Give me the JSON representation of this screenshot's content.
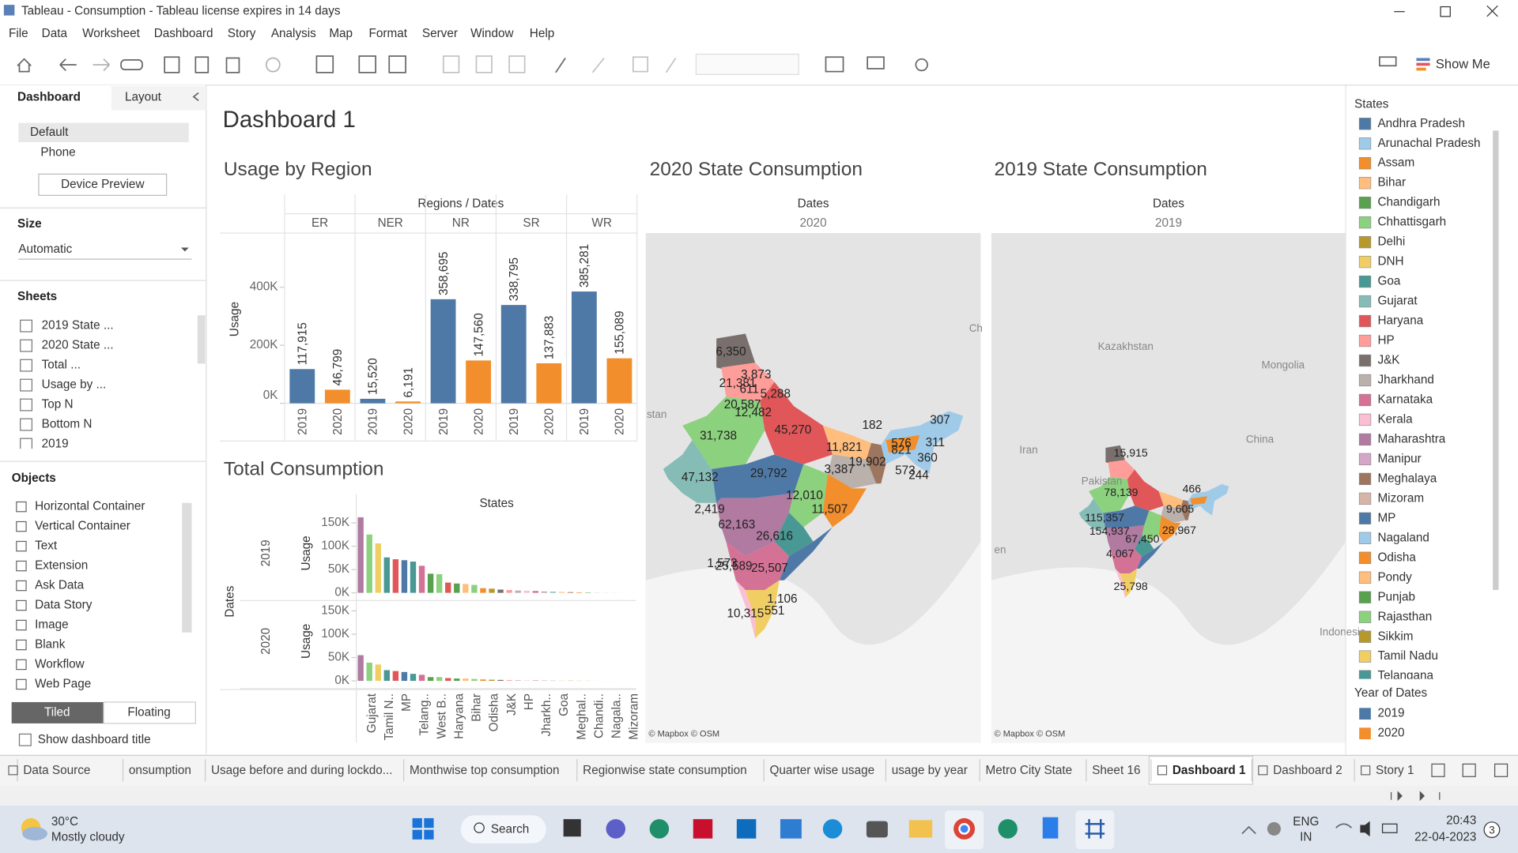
{
  "window": {
    "title": "Tableau - Consumption - Tableau license expires in 14 days"
  },
  "menu": [
    "File",
    "Data",
    "Worksheet",
    "Dashboard",
    "Story",
    "Analysis",
    "Map",
    "Format",
    "Server",
    "Window",
    "Help"
  ],
  "toolbar": {
    "show_me": "Show Me"
  },
  "left_panel": {
    "tabs": [
      "Dashboard",
      "Layout"
    ],
    "devices": [
      "Default",
      "Phone"
    ],
    "device_preview": "Device Preview",
    "size_heading": "Size",
    "size_value": "Automatic",
    "sheets_heading": "Sheets",
    "sheets": [
      "2019 State ...",
      "2020 State ...",
      "Total ...",
      "Usage by ...",
      "Top N",
      "Bottom N",
      "2019"
    ],
    "objects_heading": "Objects",
    "objects": [
      "Horizontal Container",
      "Vertical Container",
      "Text",
      "Extension",
      "Ask Data",
      "Data Story",
      "Image",
      "Blank",
      "Workflow",
      "Web Page"
    ],
    "layout_modes": [
      "Tiled",
      "Floating"
    ],
    "show_title": "Show dashboard title"
  },
  "dashboard": {
    "title": "Dashboard 1"
  },
  "chart_data": [
    {
      "type": "bar",
      "title": "Usage by Region",
      "header": "Regions / Dates",
      "y_label": "Usage",
      "categories": [
        "ER",
        "NER",
        "NR",
        "SR",
        "WR"
      ],
      "series": [
        {
          "name": "2019",
          "color": "#4e79a7",
          "values": [
            117915,
            15520,
            358695,
            338795,
            385281
          ],
          "value_labels": [
            "117,915",
            "15,520",
            "358,695",
            "338,795",
            "385,281"
          ]
        },
        {
          "name": "2020",
          "color": "#f28e2b",
          "values": [
            46799,
            6191,
            147560,
            137883,
            155089
          ],
          "value_labels": [
            "46,799",
            "6,191",
            "147,560",
            "137,883",
            "155,089"
          ]
        }
      ],
      "ylim": [
        0,
        580000
      ],
      "yticks": [
        {
          "value": 0,
          "label": "0K"
        },
        {
          "value": 200000,
          "label": "200K"
        },
        {
          "value": 400000,
          "label": "400K"
        }
      ]
    },
    {
      "type": "bar",
      "title": "Total Consumption",
      "header": "States",
      "row_label": "Dates",
      "y_label": "Usage",
      "categories": [
        null,
        "Gujarat",
        null,
        "Tamil N..",
        null,
        "MP",
        null,
        "Telang..",
        null,
        "West B..",
        null,
        "Haryana",
        null,
        "Bihar",
        null,
        "Odisha",
        null,
        "J&K",
        null,
        "HP",
        null,
        "Jharkh..",
        null,
        "Goa",
        null,
        "Meghal..",
        null,
        "Chandi..",
        null,
        "Nagala..",
        null,
        "Mizoram"
      ],
      "colors": [
        "#b07aa1",
        "#8cd17d",
        "#f1ce63",
        "#499894",
        "#e15759",
        "#4e79a7",
        "#499894",
        "#d37295",
        "#59a14f",
        "#8cd17d",
        "#e15759",
        "#59a14f",
        "#ffbe7d",
        "#8cd17d",
        "#f28e2b",
        "#b6992d",
        "#79706e",
        "#ff9d9a",
        "#bab0ac",
        "#fabfd2",
        "#d37295",
        "#bab0ac",
        "#86bcb6",
        "#ffbe7d",
        "#9d7660",
        "#f28e2b",
        "#59a14f",
        "#a0cbe8",
        "#d7b5a6",
        "#d4a6c8",
        "#a0cbe8",
        "#d7b5a6"
      ],
      "series": [
        {
          "name": "2019",
          "values": [
            162000,
            125000,
            106000,
            76000,
            72000,
            70000,
            67000,
            58000,
            41000,
            40000,
            22000,
            20000,
            19000,
            17000,
            10000,
            9000,
            7000,
            6000,
            5000,
            4500,
            4000,
            3000,
            2500,
            2000,
            1500,
            1200,
            800,
            500,
            300,
            200,
            100,
            50
          ]
        },
        {
          "name": "2020",
          "values": [
            55000,
            39000,
            35000,
            23000,
            21000,
            19000,
            15000,
            13000,
            8000,
            8000,
            6000,
            5000,
            5000,
            4000,
            3000,
            2500,
            2000,
            1500,
            1200,
            1000,
            900,
            800,
            600,
            500,
            400,
            300,
            200,
            150,
            100,
            60,
            40,
            20
          ]
        }
      ],
      "ylim": [
        0,
        170000
      ],
      "yticks": [
        {
          "value": 0,
          "label": "0K"
        },
        {
          "value": 50000,
          "label": "50K"
        },
        {
          "value": 100000,
          "label": "100K"
        },
        {
          "value": 150000,
          "label": "150K"
        }
      ]
    }
  ],
  "maps": [
    {
      "title": "2020 State Consumption",
      "header": "Dates",
      "year": "2020",
      "labels": [
        "6,350",
        "3,873",
        "21,381",
        "611",
        "5,288",
        "20,587",
        "12,482",
        "45,270",
        "182",
        "307",
        "11,821",
        "576",
        "821",
        "311",
        "19,902",
        "360",
        "3,387",
        "573",
        "244",
        "31,738",
        "29,792",
        "47,132",
        "12,010",
        "11,507",
        "2,419",
        "62,163",
        "26,616",
        "1,573",
        "25,589",
        "25,507",
        "1,106",
        "10,315",
        "551"
      ],
      "places": [
        "stan",
        "Ch"
      ],
      "credit": "© Mapbox © OSM"
    },
    {
      "title": "2019 State Consumption",
      "header": "Dates",
      "year": "2019",
      "labels": [
        "15,915",
        "78,139",
        "115,357",
        "154,937",
        "4,067",
        "67,450",
        "25,798",
        "28,967",
        "9,605",
        "466"
      ],
      "places": [
        "Kazakhstan",
        "Mongolia",
        "China",
        "Iran",
        "Pakistan",
        "Indonesia",
        "en"
      ],
      "credit": "© Mapbox © OSM"
    }
  ],
  "legend": {
    "states_title": "States",
    "year_title": "Year of Dates",
    "states": [
      {
        "name": "Andhra Pradesh",
        "color": "#4e79a7"
      },
      {
        "name": "Arunachal Pradesh",
        "color": "#a0cbe8"
      },
      {
        "name": "Assam",
        "color": "#f28e2b"
      },
      {
        "name": "Bihar",
        "color": "#ffbe7d"
      },
      {
        "name": "Chandigarh",
        "color": "#59a14f"
      },
      {
        "name": "Chhattisgarh",
        "color": "#8cd17d"
      },
      {
        "name": "Delhi",
        "color": "#b6992d"
      },
      {
        "name": "DNH",
        "color": "#f1ce63"
      },
      {
        "name": "Goa",
        "color": "#499894"
      },
      {
        "name": "Gujarat",
        "color": "#86bcb6"
      },
      {
        "name": "Haryana",
        "color": "#e15759"
      },
      {
        "name": "HP",
        "color": "#ff9d9a"
      },
      {
        "name": "J&K",
        "color": "#79706e"
      },
      {
        "name": "Jharkhand",
        "color": "#bab0ac"
      },
      {
        "name": "Karnataka",
        "color": "#d37295"
      },
      {
        "name": "Kerala",
        "color": "#fabfd2"
      },
      {
        "name": "Maharashtra",
        "color": "#b07aa1"
      },
      {
        "name": "Manipur",
        "color": "#d4a6c8"
      },
      {
        "name": "Meghalaya",
        "color": "#9d7660"
      },
      {
        "name": "Mizoram",
        "color": "#d7b5a6"
      },
      {
        "name": "MP",
        "color": "#4e79a7"
      },
      {
        "name": "Nagaland",
        "color": "#a0cbe8"
      },
      {
        "name": "Odisha",
        "color": "#f28e2b"
      },
      {
        "name": "Pondy",
        "color": "#ffbe7d"
      },
      {
        "name": "Punjab",
        "color": "#59a14f"
      },
      {
        "name": "Rajasthan",
        "color": "#8cd17d"
      },
      {
        "name": "Sikkim",
        "color": "#b6992d"
      },
      {
        "name": "Tamil Nadu",
        "color": "#f1ce63"
      },
      {
        "name": "Telangana",
        "color": "#499894"
      }
    ]
  },
  "sheet_tabs": [
    "Data Source",
    "onsumption",
    "Usage before and during lockdo...",
    "Monthwise top consumption",
    "Regionwise state consumption",
    "Quarter wise usage",
    "usage by year",
    "Metro City State",
    "Sheet 16",
    "Dashboard 1",
    "Dashboard 2",
    "Story 1"
  ],
  "taskbar": {
    "temperature": "30°C",
    "weather": "Mostly cloudy",
    "search": "Search",
    "language": "ENG",
    "region": "IN",
    "time": "20:43",
    "date": "22-04-2023",
    "badge": "3"
  }
}
